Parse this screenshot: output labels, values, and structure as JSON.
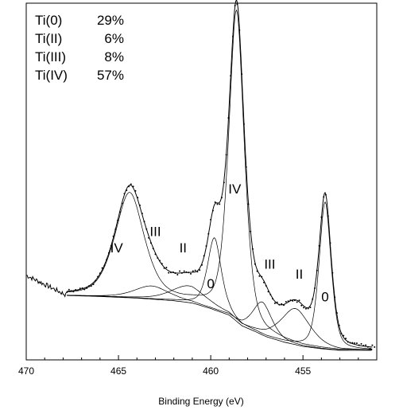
{
  "legend": [
    {
      "name": "Ti(0)",
      "pct": "29%"
    },
    {
      "name": "Ti(II)",
      "pct": "6%"
    },
    {
      "name": "Ti(III)",
      "pct": "8%"
    },
    {
      "name": "Ti(IV)",
      "pct": "57%"
    }
  ],
  "chart_data": {
    "type": "line",
    "xlabel": "Binding Energy (eV)",
    "ylabel": "",
    "xlim": [
      470,
      451
    ],
    "x_reversed": true,
    "ylim": [
      0,
      1
    ],
    "x_ticks": [
      470,
      465,
      460,
      455
    ],
    "x_tick_labels": [
      "470",
      "465",
      "460",
      "455"
    ],
    "grid": false,
    "peak_labels": [
      {
        "text": "IV",
        "x": 465.1,
        "y": 0.3
      },
      {
        "text": "III",
        "x": 463.0,
        "y": 0.35
      },
      {
        "text": "II",
        "x": 461.5,
        "y": 0.3
      },
      {
        "text": "0",
        "x": 460.0,
        "y": 0.19
      },
      {
        "text": "IV",
        "x": 458.7,
        "y": 0.48
      },
      {
        "text": "III",
        "x": 456.8,
        "y": 0.25
      },
      {
        "text": "II",
        "x": 455.2,
        "y": 0.22
      },
      {
        "text": "0",
        "x": 453.8,
        "y": 0.15
      }
    ],
    "background": {
      "x": [
        467.8,
        466,
        464,
        462,
        461,
        460,
        459,
        458.3,
        457.6,
        457,
        456,
        455,
        454,
        453,
        452,
        451
      ],
      "y": [
        0.168,
        0.165,
        0.16,
        0.152,
        0.145,
        0.128,
        0.108,
        0.075,
        0.058,
        0.042,
        0.025,
        0.012,
        0.005,
        0.0,
        0.0,
        0.0
      ]
    },
    "series": [
      {
        "name": "IV",
        "values": [
          {
            "center": 458.6,
            "height": 0.95,
            "width": 0.45,
            "partner": 464.4,
            "partner_height": 0.32,
            "partner_width": 0.85
          }
        ]
      },
      {
        "name": "III",
        "values": [
          {
            "center": 457.2,
            "height": 0.1,
            "width": 0.55,
            "partner": 463.2,
            "partner_height": 0.04,
            "partner_width": 1.0
          }
        ]
      },
      {
        "name": "II",
        "values": [
          {
            "center": 455.4,
            "height": 0.11,
            "width": 0.85,
            "partner": 461.2,
            "partner_height": 0.05,
            "partner_width": 1.0
          }
        ]
      },
      {
        "name": "0",
        "values": [
          {
            "center": 453.8,
            "height": 0.45,
            "width": 0.35,
            "partner": 459.8,
            "partner_height": 0.22,
            "partner_width": 0.4
          }
        ]
      }
    ]
  }
}
